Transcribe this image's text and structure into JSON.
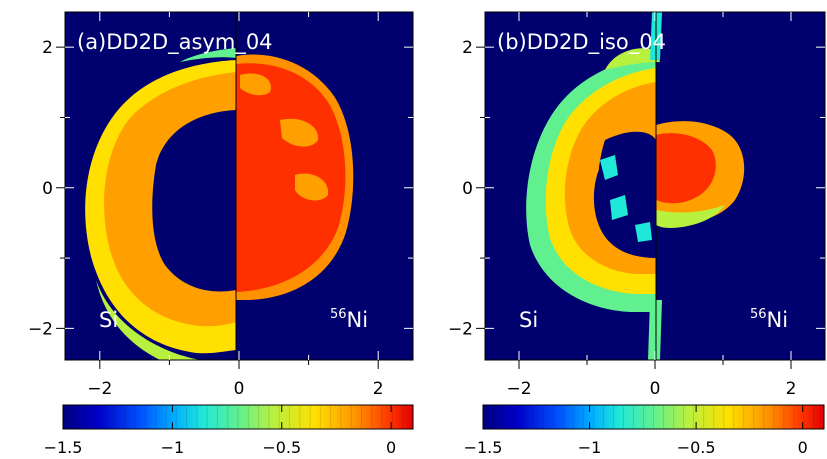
{
  "chart_data": [
    {
      "type": "heatmap",
      "title": "(a)DD2D_asym_04",
      "left_label": "Si",
      "right_label_mass": "56",
      "right_label_element": "Ni",
      "xlim": [
        -2.5,
        2.5
      ],
      "ylim": [
        -2.45,
        2.5
      ],
      "xticks": [
        -2,
        0,
        2
      ],
      "xtick_labels": [
        "−2",
        "0",
        "2"
      ],
      "yticks": [
        -2,
        0,
        2
      ],
      "ytick_labels": [
        "−2",
        "0",
        "2"
      ],
      "colorbar": {
        "range": [
          -1.5,
          0.1
        ],
        "ticks": [
          -1.5,
          -1,
          -0.5,
          0
        ],
        "tick_labels": [
          "−1.5",
          "−1",
          "−0.5",
          "0"
        ]
      }
    },
    {
      "type": "heatmap",
      "title": "(b)DD2D_iso_04",
      "left_label": "Si",
      "right_label_mass": "56",
      "right_label_element": "Ni",
      "xlim": [
        -2.5,
        2.5
      ],
      "ylim": [
        -2.45,
        2.5
      ],
      "xticks": [
        -2,
        0,
        2
      ],
      "xtick_labels": [
        "−2",
        "0",
        "2"
      ],
      "yticks": [
        -2,
        0,
        2
      ],
      "ytick_labels": [
        "−2",
        "0",
        "2"
      ],
      "colorbar": {
        "range": [
          -1.5,
          0.1
        ],
        "ticks": [
          -1.5,
          -1,
          -0.5,
          0
        ],
        "tick_labels": [
          "−1.5",
          "−1",
          "−0.5",
          "0"
        ]
      }
    }
  ],
  "colors": {
    "background": "#00006e",
    "colormap": [
      "#000080",
      "#0000c8",
      "#0050ff",
      "#00b0ff",
      "#20e8d8",
      "#60f090",
      "#b8f040",
      "#ffe000",
      "#ff9000",
      "#ff3000",
      "#e00000"
    ]
  }
}
